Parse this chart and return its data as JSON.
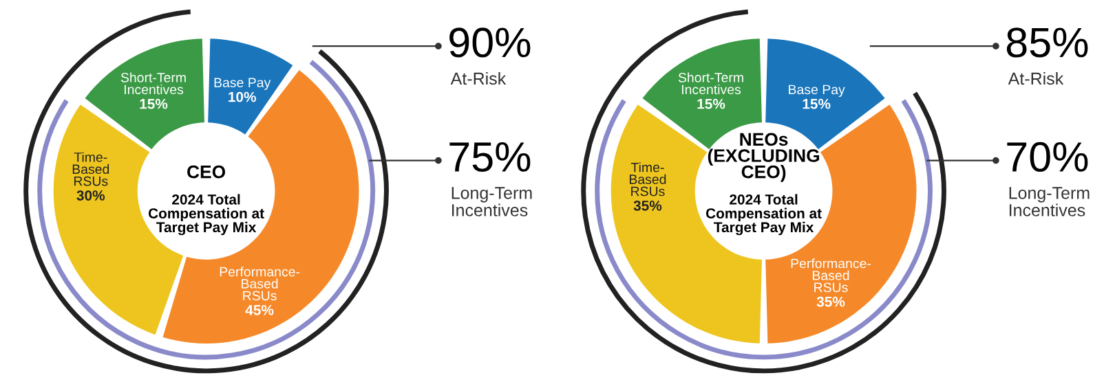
{
  "chart_data": [
    {
      "type": "donut",
      "title": "CEO",
      "subtitle": "2024 Total\nCompensation at\nTarget Pay Mix",
      "categories": [
        "Base Pay",
        "Performance-\nBased\nRSUs",
        "Time-\nBased\nRSUs",
        "Short-Term\nIncentives"
      ],
      "values": [
        10,
        45,
        30,
        15
      ],
      "value_labels": [
        "10%",
        "45%",
        "30%",
        "15%"
      ],
      "colors": [
        "#1a75bb",
        "#f5892a",
        "#eec51f",
        "#3a9a45"
      ],
      "annotations": [
        "90%",
        "At-Risk",
        "75%",
        "Long-Term\nIncentives"
      ],
      "legend": false
    },
    {
      "type": "donut",
      "title": "NEOs\n(EXCLUDING\nCEO)",
      "subtitle": "2024 Total\nCompensation at\nTarget Pay Mix",
      "categories": [
        "Base Pay",
        "Performance-\nBased\nRSUs",
        "Time-\nBased\nRSUs",
        "Short-Term\nIncentives"
      ],
      "values": [
        15,
        35,
        35,
        15
      ],
      "value_labels": [
        "15%",
        "35%",
        "35%",
        "15%"
      ],
      "colors": [
        "#1a75bb",
        "#f5892a",
        "#eec51f",
        "#3a9a45"
      ],
      "annotations": [
        "85%",
        "At-Risk",
        "70%",
        "Long-Term\nIncentives"
      ],
      "legend": false
    }
  ]
}
